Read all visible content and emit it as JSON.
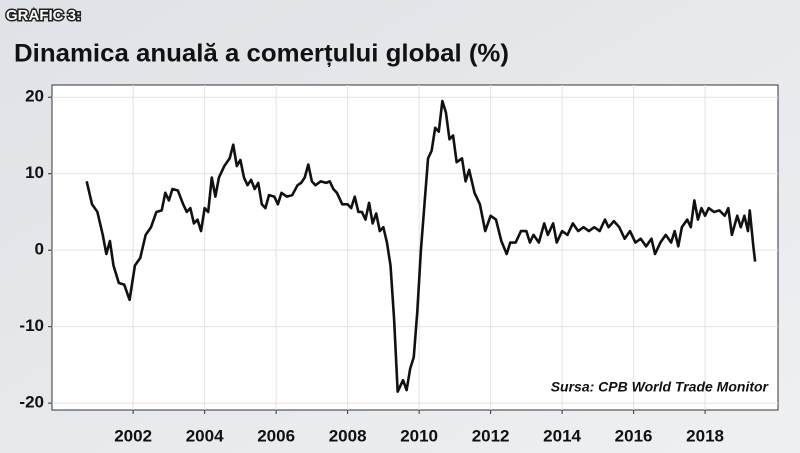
{
  "chart_data": {
    "type": "line",
    "label": "GRAFIC 3:",
    "title": "Dinamica anuală a comerțului global (%)",
    "annotation": "Sursa: CPB World Trade Monitor",
    "color": "#111111",
    "grid": true,
    "xlim": [
      1999.73,
      2020.04
    ],
    "xticks": [
      2002,
      2004,
      2006,
      2008,
      2010,
      2012,
      2014,
      2016,
      2018
    ],
    "ylim": [
      -20.9,
      21.6
    ],
    "yticks": [
      -20,
      -10,
      0,
      10,
      20
    ],
    "x": [
      2000.7,
      2000.85,
      2001.0,
      2001.15,
      2001.25,
      2001.35,
      2001.45,
      2001.6,
      2001.75,
      2001.9,
      2002.05,
      2002.2,
      2002.35,
      2002.5,
      2002.65,
      2002.8,
      2002.9,
      2003.0,
      2003.1,
      2003.25,
      2003.4,
      2003.5,
      2003.6,
      2003.7,
      2003.8,
      2003.9,
      2004.0,
      2004.1,
      2004.2,
      2004.3,
      2004.4,
      2004.55,
      2004.7,
      2004.8,
      2004.9,
      2005.0,
      2005.1,
      2005.2,
      2005.3,
      2005.4,
      2005.5,
      2005.6,
      2005.7,
      2005.8,
      2005.95,
      2006.05,
      2006.15,
      2006.3,
      2006.45,
      2006.6,
      2006.7,
      2006.8,
      2006.9,
      2007.0,
      2007.1,
      2007.25,
      2007.4,
      2007.5,
      2007.6,
      2007.7,
      2007.85,
      2008.0,
      2008.1,
      2008.2,
      2008.3,
      2008.4,
      2008.5,
      2008.6,
      2008.7,
      2008.8,
      2008.9,
      2009.0,
      2009.1,
      2009.2,
      2009.3,
      2009.4,
      2009.55,
      2009.65,
      2009.75,
      2009.85,
      2009.95,
      2010.05,
      2010.15,
      2010.25,
      2010.35,
      2010.45,
      2010.55,
      2010.65,
      2010.75,
      2010.85,
      2010.95,
      2011.05,
      2011.2,
      2011.3,
      2011.4,
      2011.55,
      2011.7,
      2011.85,
      2012.0,
      2012.15,
      2012.3,
      2012.45,
      2012.55,
      2012.7,
      2012.85,
      2013.0,
      2013.1,
      2013.2,
      2013.35,
      2013.5,
      2013.6,
      2013.75,
      2013.85,
      2014.0,
      2014.15,
      2014.3,
      2014.45,
      2014.6,
      2014.75,
      2014.9,
      2015.05,
      2015.2,
      2015.3,
      2015.45,
      2015.6,
      2015.75,
      2015.9,
      2016.05,
      2016.2,
      2016.35,
      2016.5,
      2016.6,
      2016.75,
      2016.9,
      2017.05,
      2017.15,
      2017.25,
      2017.35,
      2017.5,
      2017.6,
      2017.7,
      2017.8,
      2017.9,
      2018.0,
      2018.1,
      2018.25,
      2018.4,
      2018.55,
      2018.65,
      2018.75,
      2018.9,
      2019.0,
      2019.1,
      2019.2,
      2019.25,
      2019.35,
      2019.4
    ],
    "values": [
      9,
      6,
      5,
      2,
      -0.5,
      1.2,
      -2,
      -4.3,
      -4.5,
      -6.5,
      -2,
      -1,
      2,
      3,
      5,
      5.2,
      7.5,
      6.5,
      8,
      7.8,
      6,
      5,
      5.5,
      3.5,
      4,
      2.5,
      5.5,
      5,
      9.5,
      7,
      9.5,
      11,
      12,
      13.8,
      11,
      11.8,
      9.5,
      8.5,
      9.2,
      8,
      8.8,
      6,
      5.5,
      7.2,
      7,
      6,
      7.5,
      7,
      7.2,
      8.5,
      8.8,
      9.5,
      11.2,
      9,
      8.5,
      9,
      8.8,
      9,
      8,
      7.5,
      6,
      6,
      5.5,
      7,
      5,
      5,
      4,
      6.2,
      3.5,
      4.8,
      2.5,
      3,
      1,
      -2,
      -9,
      -18.5,
      -17,
      -18.3,
      -15.5,
      -14,
      -8,
      0,
      6,
      12,
      13,
      16,
      15.5,
      19.5,
      18,
      14.5,
      15,
      11.5,
      12,
      9,
      10.5,
      7.5,
      6,
      2.5,
      4.5,
      4,
      1.2,
      -0.5,
      1,
      1,
      2.5,
      2.5,
      1,
      2,
      1,
      3.5,
      2,
      3.5,
      1,
      2.5,
      2,
      3.5,
      2.5,
      3,
      2.5,
      3,
      2.5,
      4,
      3,
      3.8,
      3,
      1.5,
      2.5,
      1,
      1.5,
      0.5,
      1.5,
      -0.5,
      1,
      2,
      1,
      2.5,
      0.5,
      3,
      4,
      3,
      6.5,
      4,
      5.5,
      4.5,
      5.5,
      5,
      5.2,
      4.5,
      5.5,
      2,
      4.5,
      3,
      4.5,
      2.5,
      5.2,
      0.5,
      -1.5
    ]
  }
}
